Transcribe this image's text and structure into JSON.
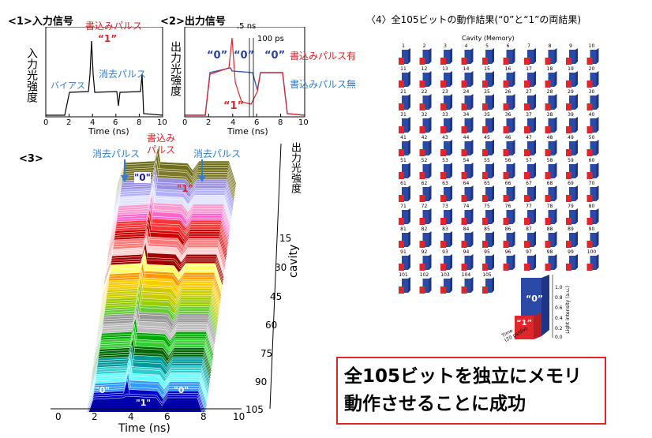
{
  "panel1": {
    "title": "<1>入力信号",
    "ylabel": "入力光強度",
    "xlabel": "Time (ns)",
    "xticks": [
      "0",
      "2",
      "4",
      "6",
      "8",
      "10"
    ],
    "label_bias": "バイアス",
    "label_write": "書込みパルス",
    "label_one": "“1”",
    "label_erase": "消去パルス"
  },
  "panel2": {
    "title": "<2>出力信号",
    "ylabel": "出力光強度",
    "xlabel": "Time (ns)",
    "xticks": [
      "0",
      "2",
      "4",
      "6",
      "8",
      "10"
    ],
    "annot_5ns": ".5 ns",
    "annot_100ps": "100 ps",
    "label_zero_a": "“0”",
    "label_zero_b": "“0”",
    "label_zero_c": "“0”",
    "label_one": "“1”",
    "legend_with": "書込みパルス有",
    "legend_without": "書込みパルス無"
  },
  "panel3": {
    "title": "<3>",
    "label_erase_left": "消去パルス",
    "label_write": "書込み\nパルス",
    "label_erase_right": "消去パルス",
    "label_zero_top": "\"0\"",
    "label_one_top": "\"1\"",
    "label_zero_bl": "\"0\"",
    "label_one_bot": "\"1\"",
    "label_zero_br": "\"0\"",
    "zlabel": "出力光強度",
    "cavity_label": "cavity",
    "cavity_ticks": [
      "15",
      "30",
      "45",
      "60",
      "75",
      "90",
      "105"
    ],
    "xticks": [
      "0",
      "2",
      "4",
      "6",
      "8",
      "10"
    ],
    "xlabel": "Time (ns)"
  },
  "panel4": {
    "title": "〈4〉全105ビットの動作結果(“0”と“1”の両結果)",
    "subtitle": "Cavity (Memory)",
    "zero_label": "“0”",
    "one_label": "“1”",
    "ylabel": "Light intensity (a.u.)",
    "yticks": [
      "1.0",
      "0.8",
      "0.6",
      "0.4",
      "0.2",
      "0.0"
    ],
    "time_label": "Time\n(20 ps/div)",
    "colors": {
      "zero": "#2b4aa6",
      "one": "#e0262b"
    }
  },
  "callout": {
    "line1": "全105ビットを独立にメモリ",
    "line2": "動作させることに成功"
  },
  "chart_data": [
    {
      "type": "line",
      "title": "<1>入力信号",
      "xlabel": "Time (ns)",
      "ylabel": "入力光強度",
      "xlim": [
        0,
        10
      ],
      "series": [
        {
          "x": [
            0,
            1.6,
            2,
            3.8,
            3.9,
            4.0,
            4.1,
            4.2,
            6.0,
            6.1,
            6.3,
            7.8,
            8.0,
            8.2,
            10
          ],
          "values": [
            0,
            0,
            0.35,
            0.35,
            0.6,
            1.0,
            0.6,
            0.35,
            0.35,
            0.15,
            0.35,
            0.35,
            0.5,
            0.05,
            0
          ]
        }
      ]
    },
    {
      "type": "line",
      "title": "<2>出力信号",
      "xlabel": "Time (ns)",
      "ylabel": "出力光強度",
      "xlim": [
        0,
        10
      ],
      "series": [
        {
          "name": "書込みパルス有",
          "x": [
            0,
            1.8,
            2.2,
            3.8,
            4.0,
            4.2,
            4.6,
            5.4,
            5.8,
            6.2,
            6.6,
            7.8,
            8.2,
            10
          ],
          "values": [
            0,
            0,
            0.7,
            0.75,
            1.0,
            0.3,
            0.15,
            0.12,
            0.4,
            0.75,
            0.72,
            0.7,
            0.05,
            0
          ]
        },
        {
          "name": "書込みパルス無",
          "x": [
            0,
            1.8,
            2.2,
            3.8,
            4.0,
            5.6,
            5.9,
            6.2,
            7.8,
            8.2,
            10
          ],
          "values": [
            0,
            0,
            0.7,
            0.75,
            0.72,
            0.7,
            0.4,
            0.75,
            0.7,
            0.05,
            0
          ]
        }
      ]
    },
    {
      "type": "area",
      "title": "<3>",
      "xlabel": "Time (ns)",
      "ylabel": "cavity",
      "zlabel": "出力光強度",
      "xlim": [
        0,
        10
      ],
      "ylim": [
        0,
        105
      ]
    },
    {
      "type": "bar",
      "title": "〈4〉全105ビットの動作結果(“0”と“1”の両結果)",
      "ylabel": "Light intensity (a.u.)",
      "ylim": [
        0,
        1.0
      ],
      "cavity_count": 105,
      "series": [
        {
          "name": "“0”",
          "values": [
            1.0
          ]
        },
        {
          "name": "“1”",
          "values": [
            0.35
          ]
        }
      ]
    }
  ]
}
